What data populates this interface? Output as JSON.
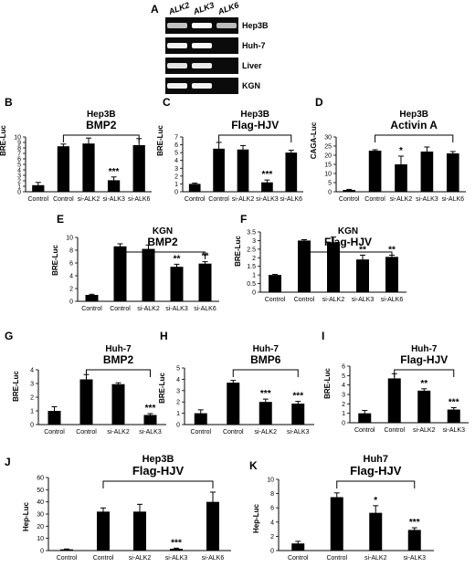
{
  "gel": {
    "letter": "A",
    "columns": [
      "ALK2",
      "ALK3",
      "ALK6"
    ],
    "rows": [
      {
        "label": "Hep3B",
        "bands": [
          0.55,
          0.95,
          0.5
        ]
      },
      {
        "label": "Huh-7",
        "bands": [
          0.9,
          0.95,
          0.0
        ]
      },
      {
        "label": "Liver",
        "bands": [
          0.8,
          0.85,
          0.0
        ]
      },
      {
        "label": "KGN",
        "bands": [
          0.9,
          0.9,
          0.0
        ]
      }
    ]
  },
  "chart_data": [
    {
      "letter": "B",
      "type": "bar",
      "title": [
        "Hep3B",
        "BMP2"
      ],
      "bracket": true,
      "ylabel": "BRE-Luc",
      "categories": [
        "Control",
        "Control",
        "si-ALK2",
        "si-ALK3",
        "si-ALK6"
      ],
      "values": [
        1.2,
        8.3,
        8.8,
        2.1,
        8.5
      ],
      "errors": [
        0.5,
        0.4,
        1.0,
        0.6,
        1.2
      ],
      "sig": [
        "",
        "",
        "",
        "***",
        ""
      ],
      "ylim": [
        0,
        10
      ],
      "yticks": [
        0,
        1,
        2,
        3,
        4,
        5,
        6,
        7,
        8,
        9,
        10
      ]
    },
    {
      "letter": "C",
      "type": "bar",
      "title": [
        "Hep3B",
        "Flag-HJV"
      ],
      "bracket": true,
      "ylabel": "BRE-Luc",
      "categories": [
        "Control",
        "Control",
        "si-ALK2",
        "si-ALK3",
        "si-ALK6"
      ],
      "values": [
        1.0,
        5.5,
        5.4,
        1.2,
        5.0
      ],
      "errors": [
        0.1,
        0.8,
        0.5,
        0.3,
        0.3
      ],
      "sig": [
        "",
        "",
        "",
        "***",
        ""
      ],
      "ylim": [
        0,
        7
      ],
      "yticks": [
        0,
        1,
        2,
        3,
        4,
        5,
        6,
        7
      ]
    },
    {
      "letter": "D",
      "type": "bar",
      "title": [
        "Hep3B",
        "Activin A"
      ],
      "bracket": true,
      "ylabel": "CAGA-Luc",
      "categories": [
        "Control",
        "Control",
        "si-ALK2",
        "si-ALK3",
        "si-ALK6"
      ],
      "values": [
        1.0,
        22.5,
        15.0,
        22.0,
        21.0
      ],
      "errors": [
        0.3,
        0.5,
        4.5,
        2.5,
        1.0
      ],
      "sig": [
        "",
        "",
        "*",
        "",
        ""
      ],
      "ylim": [
        0,
        30
      ],
      "yticks": [
        0,
        5,
        10,
        15,
        20,
        25,
        30
      ]
    },
    {
      "letter": "E",
      "type": "bar",
      "title": [
        "KGN",
        "BMP2"
      ],
      "bracket": true,
      "ylabel": "BRE-Luc",
      "categories": [
        "Control",
        "Control",
        "si-ALK2",
        "si-ALK3",
        "si-ALK6"
      ],
      "values": [
        1.0,
        8.6,
        8.2,
        5.4,
        5.9
      ],
      "errors": [
        0.1,
        0.4,
        0.6,
        0.4,
        0.3
      ],
      "sig": [
        "",
        "",
        "",
        "**",
        "**"
      ],
      "ylim": [
        0,
        10
      ],
      "yticks": [
        0,
        2,
        4,
        6,
        8,
        10
      ]
    },
    {
      "letter": "F",
      "type": "bar",
      "title": [
        "KGN",
        "Flag-HJV"
      ],
      "bracket": true,
      "ylabel": "BRE-Luc",
      "categories": [
        "Control",
        "Control",
        "si-ALK2",
        "si-ALK3",
        "si-ALK6"
      ],
      "values": [
        1.0,
        3.0,
        2.9,
        1.9,
        2.05
      ],
      "errors": [
        0.03,
        0.05,
        0.3,
        0.25,
        0.1
      ],
      "sig": [
        "",
        "",
        "",
        "**",
        "**"
      ],
      "ylim": [
        0,
        3.5
      ],
      "yticks": [
        0,
        0.5,
        1,
        1.5,
        2,
        2.5,
        3,
        3.5
      ]
    },
    {
      "letter": "G",
      "type": "bar",
      "title": [
        "Huh-7",
        "BMP2"
      ],
      "bracket": true,
      "ylabel": "BRE-Luc",
      "categories": [
        "Control",
        "Control",
        "si-ALK2",
        "si-ALK3"
      ],
      "values": [
        1.0,
        3.3,
        2.95,
        0.7
      ],
      "errors": [
        0.3,
        0.35,
        0.1,
        0.1
      ],
      "sig": [
        "",
        "",
        "",
        "***"
      ],
      "ylim": [
        0,
        4
      ],
      "yticks": [
        0,
        1,
        2,
        3,
        4
      ]
    },
    {
      "letter": "H",
      "type": "bar",
      "title": [
        "Huh-7",
        "BMP6"
      ],
      "bracket": true,
      "ylabel": "BRE-Luc",
      "categories": [
        "Control",
        "Control",
        "si-ALK2",
        "si-ALK3"
      ],
      "values": [
        1.0,
        3.7,
        2.0,
        1.85
      ],
      "errors": [
        0.3,
        0.2,
        0.25,
        0.2
      ],
      "sig": [
        "",
        "",
        "***",
        "***"
      ],
      "ylim": [
        0,
        5
      ],
      "yticks": [
        0,
        1,
        2,
        3,
        4,
        5
      ]
    },
    {
      "letter": "I",
      "type": "bar",
      "title": [
        "Huh-7",
        "Flag-HJV"
      ],
      "bracket": true,
      "ylabel": "BRE-Luc",
      "categories": [
        "Control",
        "Control",
        "si-ALK2",
        "si-ALK3"
      ],
      "values": [
        1.0,
        4.7,
        3.4,
        1.4
      ],
      "errors": [
        0.3,
        0.5,
        0.2,
        0.2
      ],
      "sig": [
        "",
        "",
        "**",
        "***"
      ],
      "ylim": [
        0,
        6
      ],
      "yticks": [
        0,
        1,
        2,
        3,
        4,
        5,
        6
      ]
    },
    {
      "letter": "J",
      "type": "bar",
      "title": [
        "Hep3B",
        "Flag-HJV"
      ],
      "bracket": true,
      "ylabel": "Hep-Luc",
      "categories": [
        "Control",
        "Control",
        "si-ALK2",
        "si-ALK3",
        "si-ALK6"
      ],
      "values": [
        1.0,
        32.0,
        32.0,
        1.5,
        40.0
      ],
      "errors": [
        0.3,
        3.0,
        6.0,
        0.5,
        8.0
      ],
      "sig": [
        "",
        "",
        "",
        "***",
        ""
      ],
      "ylim": [
        0,
        60
      ],
      "yticks": [
        0,
        10,
        20,
        30,
        40,
        50,
        60
      ]
    },
    {
      "letter": "K",
      "type": "bar",
      "title": [
        "Huh7",
        "Flag-HJV"
      ],
      "bracket": true,
      "ylabel": "Hep-Luc",
      "categories": [
        "Control",
        "Control",
        "si-ALK2",
        "si-ALK3"
      ],
      "values": [
        1.0,
        7.5,
        5.3,
        2.9
      ],
      "errors": [
        0.3,
        0.6,
        1.0,
        0.3
      ],
      "sig": [
        "",
        "",
        "*",
        "***"
      ],
      "ylim": [
        0,
        10
      ],
      "yticks": [
        0,
        2,
        4,
        6,
        8,
        10
      ]
    }
  ]
}
